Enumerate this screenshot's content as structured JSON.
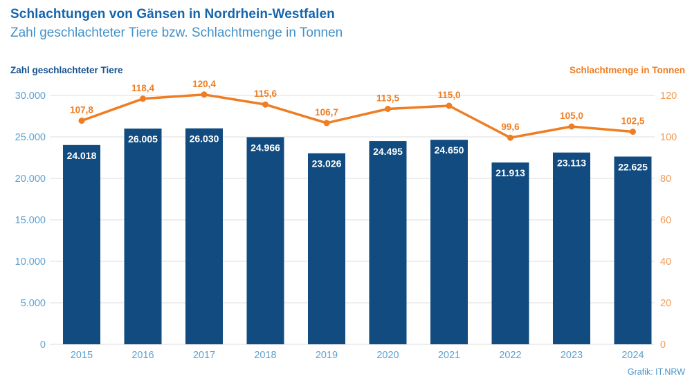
{
  "header": {
    "title": "Schlachtungen von Gänsen in Nordrhein-Westfalen",
    "subtitle": "Zahl geschlachteter Tiere bzw. Schlachtmenge in Tonnen"
  },
  "footer": {
    "credit": "Grafik: IT.NRW"
  },
  "colors": {
    "title": "#1465AD",
    "subtitle": "#4090C8",
    "left_axis_title": "#15518F",
    "right_axis_title": "#EF7D22",
    "bar": "#114B7F",
    "bar_label": "#FFFFFF",
    "line": "#EF7D22",
    "point_label": "#EF7D22",
    "tick_blue": "#5FA0CF",
    "tick_orange": "#F29B55",
    "grid": "#DCDCDC",
    "credit": "#4D95C8"
  },
  "chart_data": {
    "type": "bar",
    "subtype": "combo-bar-line-dual-axis",
    "title": "Schlachtungen von Gänsen in Nordrhein-Westfalen",
    "subtitle": "Zahl geschlachteter Tiere bzw. Schlachtmenge in Tonnen",
    "categories": [
      "2015",
      "2016",
      "2017",
      "2018",
      "2019",
      "2020",
      "2021",
      "2022",
      "2023",
      "2024"
    ],
    "series": [
      {
        "name": "Zahl geschlachteter Tiere",
        "type": "bar",
        "axis": "left",
        "values": [
          24018,
          26005,
          26030,
          24966,
          23026,
          24495,
          24650,
          21913,
          23113,
          22625
        ],
        "labels": [
          "24.018",
          "26.005",
          "26.030",
          "24.966",
          "23.026",
          "24.495",
          "24.650",
          "21.913",
          "23.113",
          "22.625"
        ]
      },
      {
        "name": "Schlachtmenge in Tonnen",
        "type": "line",
        "axis": "right",
        "values": [
          107.8,
          118.4,
          120.4,
          115.6,
          106.7,
          113.5,
          115.0,
          99.6,
          105.0,
          102.5
        ],
        "labels": [
          "107,8",
          "118,4",
          "120,4",
          "115,6",
          "106,7",
          "113,5",
          "115,0",
          "99,6",
          "105,0",
          "102,5"
        ]
      }
    ],
    "left_axis": {
      "label": "Zahl geschlachteter Tiere",
      "range": [
        0,
        30000
      ],
      "ticks": [
        30000,
        25000,
        20000,
        15000,
        10000,
        5000,
        0
      ],
      "tick_labels": [
        "30.000",
        "25.000",
        "20.000",
        "15.000",
        "10.000",
        "5.000",
        "0"
      ]
    },
    "right_axis": {
      "label": "Schlachtmenge in Tonnen",
      "range": [
        0,
        120
      ],
      "ticks": [
        120,
        100,
        80,
        60,
        40,
        20,
        0
      ],
      "tick_labels": [
        "120",
        "100",
        "80",
        "60",
        "40",
        "20",
        "0"
      ]
    },
    "grid": true,
    "legend": "none",
    "source": "Grafik: IT.NRW"
  }
}
